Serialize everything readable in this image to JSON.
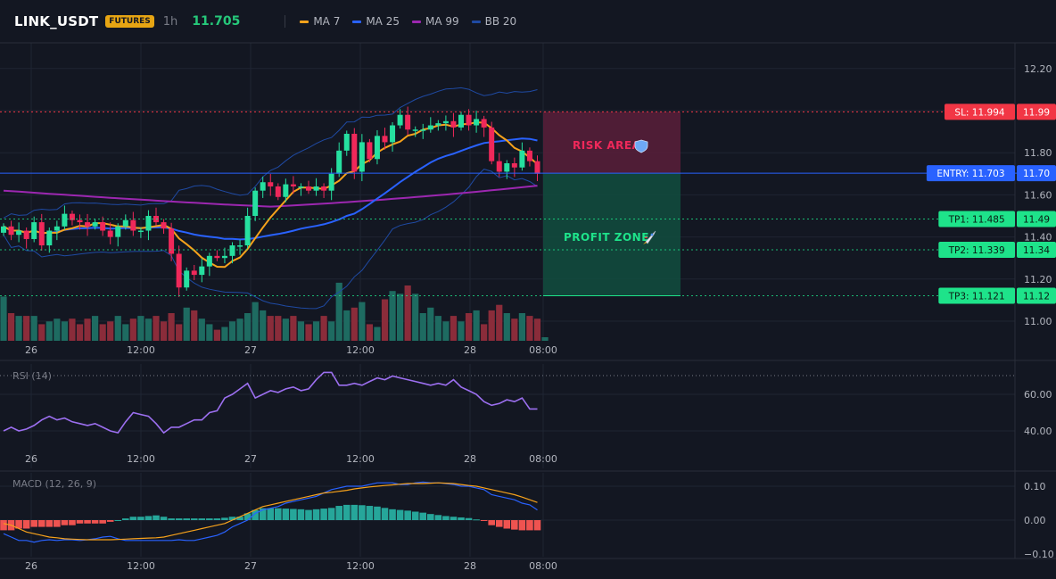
{
  "header": {
    "symbol": "LINK_USDT",
    "badge": "FUTURES",
    "timeframe": "1h",
    "last_price": "11.705",
    "indicators": [
      {
        "label": "MA 7",
        "color": "#f7a21b"
      },
      {
        "label": "MA 25",
        "color": "#2962ff"
      },
      {
        "label": "MA 99",
        "color": "#9c27b0"
      },
      {
        "label": "BB 20",
        "color": "#1f4aa3"
      }
    ]
  },
  "price_axis": {
    "ticks": [
      "12.20",
      "11.80",
      "11.60",
      "11.40",
      "11.20",
      "11.00"
    ]
  },
  "time_axis": {
    "labels": [
      "26",
      "12:00",
      "27",
      "12:00",
      "28",
      "08:00"
    ]
  },
  "trade_levels": {
    "sl": {
      "label": "SL: 11.994",
      "value": "11.99",
      "price": 11.994,
      "color": "#f23645"
    },
    "entry": {
      "label": "ENTRY: 11.703",
      "value": "11.70",
      "price": 11.703,
      "color": "#2962ff"
    },
    "tp": [
      {
        "label": "TP1: 11.485",
        "value": "11.49",
        "price": 11.485
      },
      {
        "label": "TP2: 11.339",
        "value": "11.34",
        "price": 11.339
      },
      {
        "label": "TP3: 11.121",
        "value": "11.12",
        "price": 11.121
      }
    ],
    "tp_color": "#1ee38a"
  },
  "zones": {
    "risk_label": "RISK AREA",
    "risk_icon": "shield-icon",
    "profit_label": "PROFIT ZONE",
    "profit_icon": "rocket-icon"
  },
  "rsi": {
    "title": "RSI (14)",
    "ticks": [
      "60.00",
      "40.00"
    ],
    "color": "#9c6ff0"
  },
  "macd": {
    "title": "MACD (12, 26, 9)",
    "ticks": [
      "0.10",
      "0.00",
      "−0.10"
    ],
    "macd_color": "#2962ff",
    "signal_color": "#f7a21b",
    "hist_pos_color": "#26a69a",
    "hist_neg_color": "#ef5350"
  },
  "colors": {
    "up": "#26e0a0",
    "down": "#f0285a",
    "volume_up": "#1e6b61",
    "volume_down": "#8a2c3a"
  },
  "chart_data": {
    "type": "candlestick",
    "y_range": [
      10.92,
      12.3
    ],
    "closes": [
      11.45,
      11.41,
      11.43,
      11.39,
      11.47,
      11.36,
      11.43,
      11.45,
      11.51,
      11.48,
      11.47,
      11.45,
      11.47,
      11.43,
      11.4,
      11.45,
      11.48,
      11.43,
      11.43,
      11.5,
      11.47,
      11.44,
      11.32,
      11.16,
      11.24,
      11.22,
      11.26,
      11.31,
      11.3,
      11.31,
      11.36,
      11.36,
      11.5,
      11.62,
      11.66,
      11.64,
      11.59,
      11.65,
      11.64,
      11.64,
      11.62,
      11.64,
      11.62,
      11.7,
      11.81,
      11.89,
      11.71,
      11.85,
      11.77,
      11.88,
      11.85,
      11.93,
      11.98,
      11.91,
      11.91,
      11.91,
      11.93,
      11.94,
      11.95,
      11.92,
      11.98,
      11.93,
      11.96,
      11.92,
      11.76,
      11.71,
      11.75,
      11.73,
      11.81,
      11.76,
      11.7
    ],
    "volumes": [
      0.8,
      0.5,
      0.45,
      0.45,
      0.45,
      0.3,
      0.35,
      0.4,
      0.35,
      0.4,
      0.3,
      0.4,
      0.45,
      0.3,
      0.35,
      0.45,
      0.3,
      0.4,
      0.45,
      0.4,
      0.45,
      0.35,
      0.5,
      0.3,
      0.6,
      0.55,
      0.4,
      0.3,
      0.2,
      0.25,
      0.35,
      0.4,
      0.5,
      0.7,
      0.55,
      0.45,
      0.45,
      0.4,
      0.45,
      0.35,
      0.3,
      0.35,
      0.45,
      0.35,
      1.05,
      0.55,
      0.6,
      0.7,
      0.3,
      0.25,
      0.75,
      0.9,
      0.85,
      1.0,
      0.85,
      0.5,
      0.6,
      0.45,
      0.35,
      0.45,
      0.35,
      0.5,
      0.55,
      0.3,
      0.55,
      0.65,
      0.5,
      0.4,
      0.5,
      0.45,
      0.4
    ],
    "rsi_range": [
      30,
      75
    ],
    "rsi": [
      40,
      42,
      40,
      41,
      43,
      46,
      48,
      46,
      47,
      45,
      44,
      43,
      44,
      42,
      40,
      39,
      45,
      50,
      49,
      48,
      44,
      39,
      42,
      42,
      44,
      46,
      46,
      50,
      51,
      58,
      60,
      63,
      66,
      58,
      60,
      62,
      61,
      63,
      64,
      62,
      63,
      68,
      72,
      72,
      65,
      65,
      66,
      65,
      67,
      69,
      68,
      70,
      69,
      68,
      67,
      66,
      65,
      66,
      65,
      68,
      64,
      62,
      60,
      56,
      54,
      55,
      57,
      56,
      58,
      52,
      52
    ],
    "macd_range": [
      -0.13,
      0.13
    ],
    "macd_hist": [
      -0.03,
      -0.03,
      -0.025,
      -0.025,
      -0.02,
      -0.02,
      -0.02,
      -0.02,
      -0.015,
      -0.015,
      -0.01,
      -0.01,
      -0.01,
      -0.01,
      -0.005,
      0,
      0.005,
      0.01,
      0.01,
      0.012,
      0.014,
      0.01,
      0.005,
      0.005,
      0.005,
      0.005,
      0.005,
      0.005,
      0.005,
      0.007,
      0.01,
      0.01,
      0.02,
      0.03,
      0.035,
      0.035,
      0.035,
      0.034,
      0.033,
      0.032,
      0.03,
      0.032,
      0.034,
      0.036,
      0.042,
      0.045,
      0.045,
      0.044,
      0.042,
      0.04,
      0.036,
      0.032,
      0.03,
      0.028,
      0.025,
      0.022,
      0.018,
      0.015,
      0.012,
      0.01,
      0.008,
      0.006,
      0.002,
      -0.002,
      -0.015,
      -0.02,
      -0.025,
      -0.028,
      -0.03,
      -0.03,
      -0.03
    ],
    "macd_line": [
      -0.04,
      -0.05,
      -0.06,
      -0.06,
      -0.065,
      -0.06,
      -0.058,
      -0.06,
      -0.058,
      -0.058,
      -0.06,
      -0.058,
      -0.055,
      -0.05,
      -0.048,
      -0.055,
      -0.06,
      -0.06,
      -0.06,
      -0.06,
      -0.06,
      -0.06,
      -0.06,
      -0.058,
      -0.06,
      -0.06,
      -0.055,
      -0.05,
      -0.045,
      -0.035,
      -0.02,
      -0.01,
      0,
      0.02,
      0.03,
      0.035,
      0.04,
      0.05,
      0.055,
      0.06,
      0.065,
      0.07,
      0.08,
      0.09,
      0.095,
      0.1,
      0.1,
      0.1,
      0.105,
      0.11,
      0.11,
      0.11,
      0.105,
      0.105,
      0.11,
      0.112,
      0.11,
      0.11,
      0.108,
      0.105,
      0.1,
      0.1,
      0.095,
      0.09,
      0.075,
      0.07,
      0.065,
      0.06,
      0.05,
      0.045,
      0.03
    ],
    "macd_signal": [
      -0.01,
      -0.015,
      -0.025,
      -0.035,
      -0.04,
      -0.045,
      -0.05,
      -0.052,
      -0.055,
      -0.056,
      -0.057,
      -0.058,
      -0.058,
      -0.058,
      -0.058,
      -0.057,
      -0.056,
      -0.055,
      -0.054,
      -0.053,
      -0.052,
      -0.05,
      -0.045,
      -0.04,
      -0.035,
      -0.03,
      -0.025,
      -0.02,
      -0.015,
      -0.01,
      0,
      0.01,
      0.02,
      0.03,
      0.04,
      0.045,
      0.05,
      0.055,
      0.06,
      0.065,
      0.07,
      0.075,
      0.08,
      0.082,
      0.085,
      0.088,
      0.092,
      0.095,
      0.098,
      0.1,
      0.102,
      0.104,
      0.106,
      0.108,
      0.108,
      0.108,
      0.109,
      0.11,
      0.109,
      0.108,
      0.105,
      0.102,
      0.1,
      0.095,
      0.09,
      0.085,
      0.08,
      0.075,
      0.068,
      0.06,
      0.052
    ]
  }
}
